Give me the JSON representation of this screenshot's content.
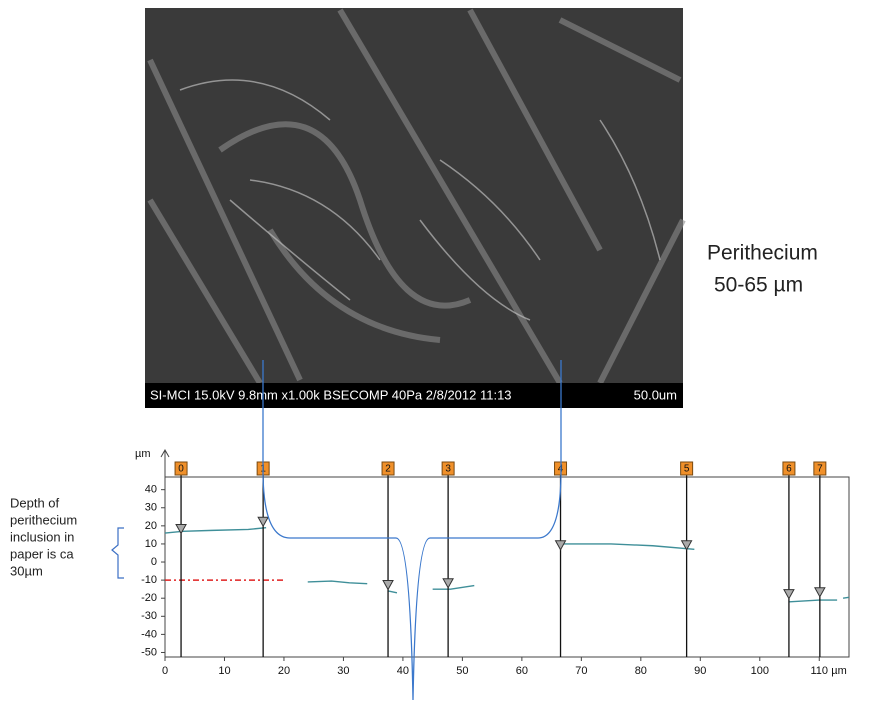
{
  "image": {
    "caption": "SI-MCI 15.0kV 9.8mm x1.00k BSECOMP 40Pa 2/8/2012 11:13",
    "scale": "50.0um"
  },
  "annotation": {
    "title": "Perithecium",
    "size": "50-65 µm"
  },
  "note": {
    "lines": [
      "Depth of",
      "perithecium",
      "inclusion  in",
      "paper is ca",
      "30µm"
    ]
  },
  "chart_data": {
    "type": "line",
    "y_label": "µm",
    "x_label": "µm",
    "x": [
      0,
      3,
      8,
      14,
      17,
      18,
      24,
      28,
      31,
      34,
      35,
      37.5,
      39,
      40,
      45,
      48,
      52,
      53,
      67,
      75,
      82,
      89,
      90,
      105,
      110,
      113,
      113.5,
      114,
      115
    ],
    "series": [
      {
        "color": "#3f8f99",
        "values": [
          16,
          17,
          17.5,
          18,
          19,
          null,
          -11,
          -10.5,
          -11.5,
          -12,
          null,
          -16,
          -17,
          null,
          -15,
          -15,
          -13,
          null,
          10,
          10,
          9,
          7,
          null,
          -22,
          -21,
          -21,
          null,
          -20,
          -19.5
        ]
      }
    ],
    "markers": [
      {
        "label": "0",
        "x": 2.7,
        "y": 18
      },
      {
        "label": "1",
        "x": 16.5,
        "y": 22
      },
      {
        "label": "2",
        "x": 37.5,
        "y": -13
      },
      {
        "label": "3",
        "x": 47.6,
        "y": -12
      },
      {
        "label": "4",
        "x": 66.5,
        "y": 9
      },
      {
        "label": "5",
        "x": 87.7,
        "y": 9
      },
      {
        "label": "6",
        "x": 104.9,
        "y": -18
      },
      {
        "label": "7",
        "x": 110.1,
        "y": -17
      }
    ],
    "marker_color": "#f0902a",
    "reference_line": {
      "y": -10,
      "x": [
        0,
        20
      ],
      "color": "#e02020"
    },
    "xlim": [
      0,
      115
    ],
    "ylim": [
      -52.5,
      47
    ],
    "xticks": [
      0,
      10,
      20,
      30,
      40,
      50,
      60,
      70,
      80,
      90,
      100,
      110
    ],
    "yticks": [
      40,
      30,
      20,
      10,
      0,
      -10,
      -20,
      -30,
      -40,
      -50
    ]
  }
}
